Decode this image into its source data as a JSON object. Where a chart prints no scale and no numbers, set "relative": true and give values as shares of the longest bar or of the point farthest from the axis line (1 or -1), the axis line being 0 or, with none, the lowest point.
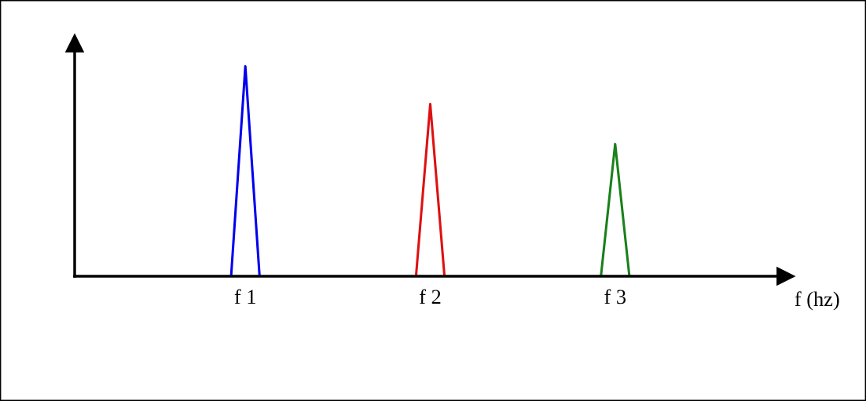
{
  "chart_data": {
    "type": "line",
    "relative": true,
    "xlabel": "f (hz)",
    "tick_labels": "x",
    "grid": false,
    "categories": [
      null,
      null,
      null,
      null,
      null,
      null,
      null,
      null,
      null,
      null,
      null,
      null,
      "f 1",
      null,
      null,
      null,
      null,
      null,
      null,
      null,
      null,
      null,
      null,
      null,
      null,
      "f 2",
      null,
      null,
      null,
      null,
      null,
      null,
      null,
      null,
      null,
      null,
      null,
      null,
      "f 3",
      null,
      null,
      null,
      null,
      null,
      null,
      null,
      null,
      null,
      null,
      null,
      null
    ],
    "series": [
      {
        "color": "#0000ee",
        "values": [
          null,
          null,
          null,
          null,
          null,
          null,
          null,
          null,
          null,
          null,
          null,
          0,
          1,
          0,
          null,
          null,
          null,
          null,
          null,
          null,
          null,
          null,
          null,
          null,
          null,
          null,
          null,
          null,
          null,
          null,
          null,
          null,
          null,
          null,
          null,
          null,
          null,
          null,
          null,
          null,
          null,
          null,
          null,
          null,
          null,
          null,
          null,
          null,
          null,
          null,
          null
        ]
      },
      {
        "color": "#dd1111",
        "values": [
          null,
          null,
          null,
          null,
          null,
          null,
          null,
          null,
          null,
          null,
          null,
          null,
          null,
          null,
          null,
          null,
          null,
          null,
          null,
          null,
          null,
          null,
          null,
          null,
          0,
          0.82,
          0,
          null,
          null,
          null,
          null,
          null,
          null,
          null,
          null,
          null,
          null,
          null,
          null,
          null,
          null,
          null,
          null,
          null,
          null,
          null,
          null,
          null,
          null,
          null,
          null
        ]
      },
      {
        "color": "#1a801a",
        "values": [
          null,
          null,
          null,
          null,
          null,
          null,
          null,
          null,
          null,
          null,
          null,
          null,
          null,
          null,
          null,
          null,
          null,
          null,
          null,
          null,
          null,
          null,
          null,
          null,
          null,
          null,
          null,
          null,
          null,
          null,
          null,
          null,
          null,
          null,
          null,
          null,
          null,
          0,
          0.63,
          0,
          null,
          null,
          null,
          null,
          null,
          null,
          null,
          null,
          null,
          null,
          null
        ]
      }
    ]
  }
}
